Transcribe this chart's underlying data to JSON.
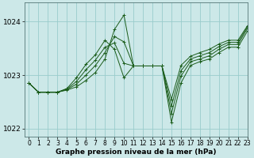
{
  "title": "Graphe pression niveau de la mer (hPa)",
  "background_color": "#cce8e8",
  "grid_color": "#99cccc",
  "line_color": "#1a5c1a",
  "xlim": [
    -0.5,
    23
  ],
  "ylim": [
    1021.85,
    1024.35
  ],
  "yticks": [
    1022,
    1023,
    1024
  ],
  "xticks": [
    0,
    1,
    2,
    3,
    4,
    5,
    6,
    7,
    8,
    9,
    10,
    11,
    12,
    13,
    14,
    15,
    16,
    17,
    18,
    19,
    20,
    21,
    22,
    23
  ],
  "series": [
    [
      1022.85,
      1022.68,
      1022.68,
      1022.68,
      1022.72,
      1022.78,
      1022.9,
      1023.05,
      1023.3,
      1023.85,
      1024.12,
      1023.17,
      1023.17,
      1023.17,
      1023.17,
      1022.12,
      1022.85,
      1023.18,
      1023.25,
      1023.3,
      1023.42,
      1023.52,
      1023.52,
      1023.82
    ],
    [
      1022.85,
      1022.68,
      1022.68,
      1022.68,
      1022.73,
      1022.83,
      1023.0,
      1023.18,
      1023.42,
      1023.72,
      1023.62,
      1023.17,
      1023.17,
      1023.17,
      1023.17,
      1022.28,
      1022.98,
      1023.25,
      1023.3,
      1023.36,
      1023.48,
      1023.57,
      1023.57,
      1023.87
    ],
    [
      1022.85,
      1022.68,
      1022.68,
      1022.68,
      1022.74,
      1022.88,
      1023.1,
      1023.28,
      1023.52,
      1023.6,
      1023.22,
      1023.17,
      1023.17,
      1023.17,
      1023.17,
      1022.42,
      1023.08,
      1023.3,
      1023.36,
      1023.42,
      1023.53,
      1023.61,
      1023.61,
      1023.9
    ],
    [
      1022.85,
      1022.68,
      1022.68,
      1022.68,
      1022.75,
      1022.95,
      1023.2,
      1023.38,
      1023.65,
      1023.48,
      1022.95,
      1023.17,
      1023.17,
      1023.17,
      1023.17,
      1022.55,
      1023.18,
      1023.35,
      1023.42,
      1023.48,
      1023.58,
      1023.65,
      1023.65,
      1023.92
    ]
  ]
}
